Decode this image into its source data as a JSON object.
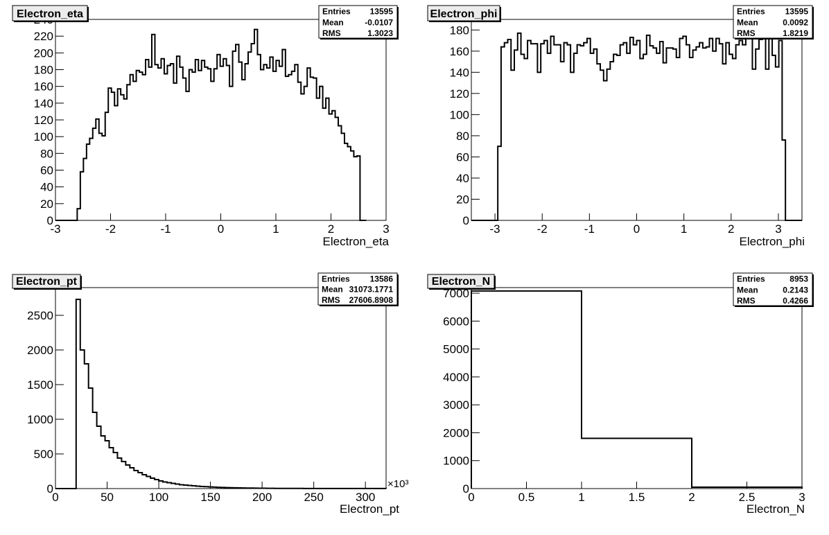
{
  "chart_data": [
    {
      "type": "bar",
      "title": "Electron_eta",
      "xlabel": "Electron_eta",
      "ylabel": "",
      "xlim": [
        -3,
        3
      ],
      "ylim": [
        0,
        240
      ],
      "xticks": [
        "-3",
        "-2",
        "-1",
        "0",
        "1",
        "2",
        "3"
      ],
      "yticks": [
        "0",
        "20",
        "40",
        "60",
        "80",
        "100",
        "120",
        "140",
        "160",
        "180",
        "200",
        "220",
        "240"
      ],
      "stats": [
        {
          "label": "Entries",
          "value": "13595"
        },
        {
          "label": "Mean",
          "value": "-0.0107"
        },
        {
          "label": "RMS",
          "value": "1.3023"
        }
      ],
      "bins_x": [
        -3.0,
        2.64
      ],
      "values": [
        0,
        0,
        0,
        0,
        0,
        0,
        0,
        14,
        58,
        74,
        91,
        98,
        110,
        121,
        104,
        101,
        129,
        158,
        153,
        137,
        157,
        150,
        145,
        162,
        174,
        166,
        179,
        177,
        174,
        192,
        183,
        222,
        186,
        182,
        193,
        175,
        185,
        187,
        164,
        196,
        183,
        170,
        154,
        180,
        177,
        192,
        179,
        191,
        183,
        181,
        166,
        181,
        198,
        184,
        193,
        185,
        160,
        202,
        210,
        189,
        168,
        187,
        201,
        211,
        228,
        198,
        180,
        186,
        182,
        195,
        178,
        191,
        184,
        204,
        172,
        174,
        178,
        186,
        165,
        151,
        160,
        182,
        171,
        170,
        146,
        160,
        134,
        146,
        127,
        131,
        123,
        113,
        104,
        92,
        88,
        83,
        76,
        77,
        0,
        0
      ]
    },
    {
      "type": "bar",
      "title": "Electron_phi",
      "xlabel": "Electron_phi",
      "ylabel": "",
      "xlim": [
        -3.5,
        3.5
      ],
      "ylim": [
        0,
        190
      ],
      "xticks": [
        "-3",
        "-2",
        "-1",
        "0",
        "1",
        "2",
        "3"
      ],
      "yticks": [
        "0",
        "20",
        "40",
        "60",
        "80",
        "100",
        "120",
        "140",
        "160",
        "180"
      ],
      "stats": [
        {
          "label": "Entries",
          "value": "13595"
        },
        {
          "label": "Mean",
          "value": "0.0092"
        },
        {
          "label": "RMS",
          "value": "1.8219"
        }
      ],
      "bins_x": [
        -3.5,
        3.5
      ],
      "values": [
        0,
        0,
        0,
        0,
        0,
        0,
        0,
        0,
        70,
        164,
        168,
        171,
        142,
        161,
        177,
        157,
        153,
        170,
        167,
        167,
        140,
        167,
        170,
        158,
        174,
        166,
        166,
        150,
        168,
        166,
        140,
        158,
        166,
        165,
        168,
        172,
        158,
        162,
        148,
        142,
        132,
        143,
        150,
        157,
        156,
        166,
        168,
        158,
        173,
        166,
        170,
        153,
        157,
        175,
        165,
        163,
        158,
        169,
        149,
        163,
        163,
        162,
        154,
        172,
        174,
        166,
        154,
        161,
        164,
        168,
        163,
        164,
        172,
        160,
        172,
        167,
        148,
        168,
        157,
        153,
        166,
        170,
        166,
        173,
        172,
        143,
        162,
        171,
        176,
        143,
        174,
        156,
        145,
        170,
        76,
        0,
        0,
        0,
        0,
        0
      ]
    },
    {
      "type": "bar",
      "title": "Electron_pt",
      "xlabel": "Electron_pt",
      "ylabel": "",
      "xlim": [
        0,
        320
      ],
      "ylim": [
        0,
        2900
      ],
      "x_multiplier": "×10³",
      "xticks": [
        "0",
        "50",
        "100",
        "150",
        "200",
        "250",
        "300"
      ],
      "yticks": [
        "0",
        "500",
        "1000",
        "1500",
        "2000",
        "2500"
      ],
      "stats": [
        {
          "label": "Entries",
          "value": "13586"
        },
        {
          "label": "Mean",
          "value": "31073.1771"
        },
        {
          "label": "RMS",
          "value": "27606.8908"
        }
      ],
      "bins_x": [
        0,
        320
      ],
      "values": [
        0,
        0,
        0,
        0,
        0,
        2730,
        2000,
        1800,
        1450,
        1100,
        900,
        760,
        690,
        590,
        520,
        440,
        390,
        340,
        300,
        260,
        230,
        200,
        175,
        150,
        130,
        110,
        95,
        85,
        75,
        65,
        55,
        50,
        45,
        40,
        35,
        30,
        27,
        24,
        21,
        18,
        16,
        14,
        12,
        11,
        10,
        9,
        8,
        7,
        6,
        5,
        5,
        4,
        4,
        3,
        3,
        3,
        2,
        2,
        2,
        2,
        1,
        1,
        1,
        1,
        1,
        1,
        1,
        1,
        1,
        1,
        1,
        1,
        1,
        1,
        1,
        1,
        1,
        1,
        1,
        1
      ]
    },
    {
      "type": "bar",
      "title": "Electron_N",
      "xlabel": "Electron_N",
      "ylabel": "",
      "xlim": [
        0,
        3
      ],
      "ylim": [
        0,
        7200
      ],
      "xticks": [
        "0",
        "0.5",
        "1",
        "1.5",
        "2",
        "2.5",
        "3"
      ],
      "yticks": [
        "0",
        "1000",
        "2000",
        "3000",
        "4000",
        "5000",
        "6000",
        "7000"
      ],
      "stats": [
        {
          "label": "Entries",
          "value": "8953"
        },
        {
          "label": "Mean",
          "value": "0.2143"
        },
        {
          "label": "RMS",
          "value": "0.4266"
        }
      ],
      "bins_x": [
        0,
        3
      ],
      "values": [
        7080,
        1800,
        50
      ]
    }
  ]
}
